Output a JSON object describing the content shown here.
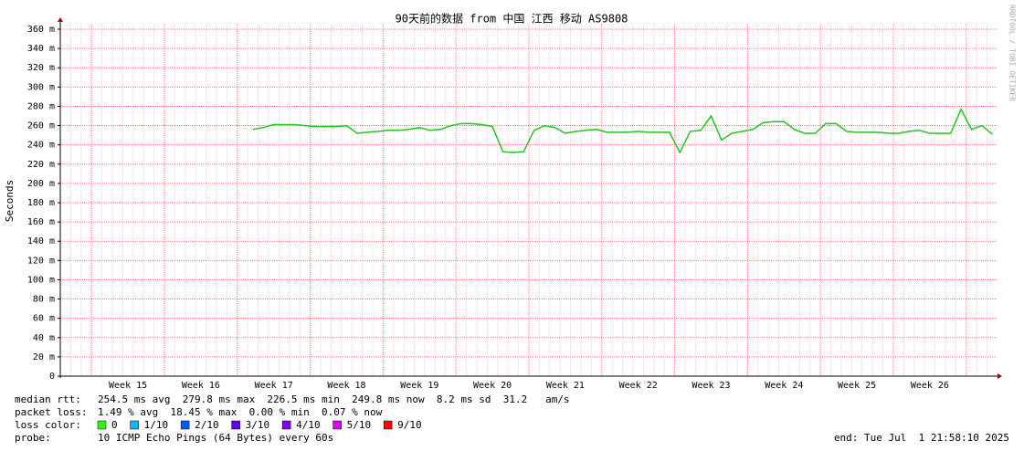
{
  "chart_data": {
    "type": "line",
    "title": "90天前的数据 from 中国 江西 移动 AS9808",
    "y_label": "Seconds",
    "side_note": "RRDTOOL / TOBI OETIKER",
    "color": "#1ec81e",
    "grid": true,
    "ylim": [
      0,
      0.36
    ],
    "yticks": [
      0,
      {
        "value": 0.02,
        "label": "20 m"
      },
      {
        "value": 0.04,
        "label": "40 m"
      },
      {
        "value": 0.06,
        "label": "60 m"
      },
      {
        "value": 0.08,
        "label": "80 m"
      },
      {
        "value": 0.1,
        "label": "100 m"
      },
      {
        "value": 0.12,
        "label": "120 m"
      },
      {
        "value": 0.14,
        "label": "140 m"
      },
      {
        "value": 0.16,
        "label": "160 m"
      },
      {
        "value": 0.18,
        "label": "180 m"
      },
      {
        "value": 0.2,
        "label": "200 m"
      },
      {
        "value": 0.22,
        "label": "220 m"
      },
      {
        "value": 0.24,
        "label": "240 m"
      },
      {
        "value": 0.26,
        "label": "260 m"
      },
      {
        "value": 0.28,
        "label": "280 m"
      },
      {
        "value": 0.3,
        "label": "300 m"
      },
      {
        "value": 0.32,
        "label": "320 m"
      },
      {
        "value": 0.34,
        "label": "340 m"
      },
      {
        "value": 0.36,
        "label": "360 m"
      }
    ],
    "categories": [
      null,
      null,
      null,
      null,
      null,
      null,
      "Week 15",
      null,
      null,
      null,
      null,
      null,
      null,
      "Week 16",
      null,
      null,
      null,
      null,
      null,
      null,
      "Week 17",
      null,
      null,
      null,
      null,
      null,
      null,
      "Week 18",
      null,
      null,
      null,
      null,
      null,
      null,
      "Week 19",
      null,
      null,
      null,
      null,
      null,
      null,
      "Week 20",
      null,
      null,
      null,
      null,
      null,
      null,
      "Week 21",
      null,
      null,
      null,
      null,
      null,
      null,
      "Week 22",
      null,
      null,
      null,
      null,
      null,
      null,
      "Week 23",
      null,
      null,
      null,
      null,
      null,
      null,
      "Week 24",
      null,
      null,
      null,
      null,
      null,
      null,
      "Week 25",
      null,
      null,
      null,
      null,
      null,
      null,
      "Week 26",
      null,
      null,
      null,
      null,
      null,
      null
    ],
    "values": [
      null,
      null,
      null,
      null,
      null,
      null,
      null,
      null,
      null,
      null,
      null,
      null,
      null,
      null,
      null,
      null,
      null,
      null,
      0.256,
      0.258,
      0.261,
      0.261,
      0.261,
      0.26,
      0.259,
      0.259,
      0.259,
      0.26,
      0.252,
      0.253,
      0.254,
      0.255,
      0.255,
      0.256,
      0.258,
      0.255,
      0.256,
      0.26,
      0.262,
      0.262,
      0.261,
      0.259,
      0.233,
      0.232,
      0.233,
      0.255,
      0.26,
      0.258,
      0.252,
      0.254,
      0.255,
      0.256,
      0.253,
      0.253,
      0.253,
      0.254,
      0.253,
      0.253,
      0.253,
      0.232,
      0.254,
      0.255,
      0.27,
      0.245,
      0.252,
      0.254,
      0.256,
      0.263,
      0.264,
      0.264,
      0.256,
      0.252,
      0.252,
      0.262,
      0.262,
      0.254,
      0.253,
      0.253,
      0.253,
      0.252,
      0.252,
      0.254,
      0.255,
      0.252,
      0.252,
      0.252,
      0.277,
      0.256,
      0.26,
      0.251
    ],
    "stats": [
      {
        "label": "median rtt:",
        "text": "254.5 ms avg  279.8 ms max  226.5 ms min  249.8 ms now  8.2 ms sd  31.2   am/s"
      },
      {
        "label": "packet loss:",
        "text": "1.49 % avg  18.45 % max  0.00 % min  0.07 % now"
      }
    ],
    "loss_label": "loss color:",
    "loss_colors": [
      {
        "name": "0",
        "color": "#26ff00"
      },
      {
        "name": "1/10",
        "color": "#00b8ff"
      },
      {
        "name": "2/10",
        "color": "#0059ff"
      },
      {
        "name": "3/10",
        "color": "#5e00ff"
      },
      {
        "name": "4/10",
        "color": "#7e00ff"
      },
      {
        "name": "5/10",
        "color": "#dd00ff"
      },
      {
        "name": "9/10",
        "color": "#ff0000"
      }
    ],
    "probe_label": "probe:",
    "probe": "10 ICMP Echo Pings (64 Bytes) every 60s",
    "end": "end: Tue Jul  1 21:58:10 2025"
  }
}
